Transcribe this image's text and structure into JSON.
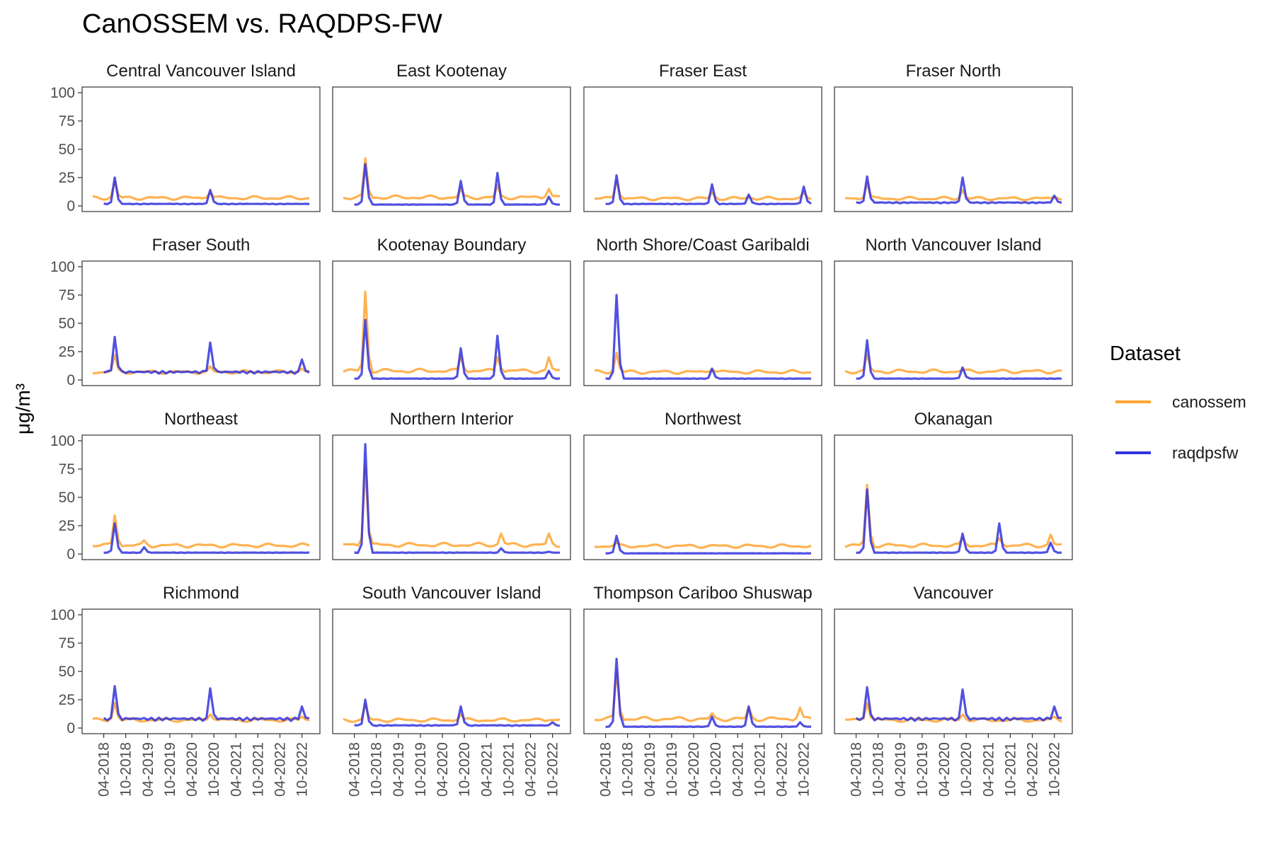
{
  "chart_data": {
    "type": "line",
    "title": "CanOSSEM vs. RAQDPS-FW",
    "ylabel": "μg/m³",
    "xlabel": "",
    "ylim": [
      0,
      100
    ],
    "yticks": [
      0,
      25,
      50,
      75,
      100
    ],
    "x_range": [
      "2018-01",
      "2022-12"
    ],
    "xticks": [
      "04-2018",
      "10-2018",
      "04-2019",
      "10-2019",
      "04-2020",
      "10-2020",
      "04-2021",
      "10-2021",
      "04-2022",
      "10-2022"
    ],
    "grid": false,
    "legend": {
      "title": "Dataset",
      "position": "right",
      "entries": [
        {
          "label": "canossem",
          "color": "#ffa533"
        },
        {
          "label": "raqdpsfw",
          "color": "#3333dd"
        }
      ]
    },
    "panels": [
      {
        "name": "Central Vancouver Island",
        "canossem_baseline": 7,
        "raqdpsfw_baseline": 1.5,
        "canossem_peaks": [
          [
            "2018-07",
            22
          ],
          [
            "2020-09",
            12
          ]
        ],
        "raqdpsfw_peaks": [
          [
            "2018-07",
            25
          ],
          [
            "2020-09",
            14
          ]
        ]
      },
      {
        "name": "East Kootenay",
        "canossem_baseline": 7.5,
        "raqdpsfw_baseline": 1,
        "canossem_peaks": [
          [
            "2018-07",
            42
          ],
          [
            "2020-09",
            15
          ],
          [
            "2021-07",
            18
          ],
          [
            "2022-09",
            15
          ]
        ],
        "raqdpsfw_peaks": [
          [
            "2018-07",
            37
          ],
          [
            "2020-09",
            22
          ],
          [
            "2021-07",
            29
          ],
          [
            "2022-09",
            8
          ]
        ]
      },
      {
        "name": "Fraser East",
        "canossem_baseline": 6.5,
        "raqdpsfw_baseline": 1.5,
        "canossem_peaks": [
          [
            "2018-07",
            22
          ],
          [
            "2020-09",
            12
          ],
          [
            "2021-07",
            8
          ],
          [
            "2022-10",
            12
          ]
        ],
        "raqdpsfw_peaks": [
          [
            "2018-07",
            27
          ],
          [
            "2020-09",
            19
          ],
          [
            "2021-07",
            10
          ],
          [
            "2022-10",
            17
          ]
        ]
      },
      {
        "name": "Fraser North",
        "canossem_baseline": 6.5,
        "raqdpsfw_baseline": 2.5,
        "canossem_peaks": [
          [
            "2018-07",
            20
          ],
          [
            "2020-09",
            14
          ],
          [
            "2022-10",
            8
          ]
        ],
        "raqdpsfw_peaks": [
          [
            "2018-07",
            26
          ],
          [
            "2020-09",
            25
          ],
          [
            "2022-10",
            9
          ]
        ]
      },
      {
        "name": "Fraser South",
        "canossem_baseline": 7,
        "raqdpsfw_baseline": 6,
        "canossem_peaks": [
          [
            "2018-07",
            22
          ],
          [
            "2020-09",
            12
          ],
          [
            "2022-10",
            10
          ]
        ],
        "raqdpsfw_peaks": [
          [
            "2018-07",
            38
          ],
          [
            "2020-09",
            33
          ],
          [
            "2022-10",
            18
          ]
        ]
      },
      {
        "name": "Kootenay Boundary",
        "canossem_baseline": 8,
        "raqdpsfw_baseline": 1,
        "canossem_peaks": [
          [
            "2018-07",
            78
          ],
          [
            "2020-09",
            20
          ],
          [
            "2021-07",
            20
          ],
          [
            "2022-09",
            20
          ]
        ],
        "raqdpsfw_peaks": [
          [
            "2018-07",
            53
          ],
          [
            "2020-09",
            28
          ],
          [
            "2021-07",
            39
          ],
          [
            "2022-09",
            8
          ]
        ]
      },
      {
        "name": "North Shore/Coast Garibaldi",
        "canossem_baseline": 7,
        "raqdpsfw_baseline": 1,
        "canossem_peaks": [
          [
            "2018-07",
            24
          ],
          [
            "2020-09",
            9
          ]
        ],
        "raqdpsfw_peaks": [
          [
            "2018-07",
            75
          ],
          [
            "2020-09",
            10
          ]
        ]
      },
      {
        "name": "North Vancouver Island",
        "canossem_baseline": 7.5,
        "raqdpsfw_baseline": 1,
        "canossem_peaks": [
          [
            "2018-07",
            23
          ],
          [
            "2020-09",
            9
          ]
        ],
        "raqdpsfw_peaks": [
          [
            "2018-07",
            35
          ],
          [
            "2020-09",
            11
          ]
        ]
      },
      {
        "name": "Northeast",
        "canossem_baseline": 7.5,
        "raqdpsfw_baseline": 1,
        "canossem_peaks": [
          [
            "2018-07",
            34
          ],
          [
            "2019-03",
            12
          ]
        ],
        "raqdpsfw_peaks": [
          [
            "2018-07",
            27
          ],
          [
            "2019-03",
            6
          ]
        ]
      },
      {
        "name": "Northern Interior",
        "canossem_baseline": 8,
        "raqdpsfw_baseline": 1,
        "canossem_peaks": [
          [
            "2018-07",
            77
          ],
          [
            "2021-08",
            18
          ],
          [
            "2022-09",
            18
          ]
        ],
        "raqdpsfw_peaks": [
          [
            "2018-07",
            97
          ],
          [
            "2021-08",
            5
          ],
          [
            "2022-09",
            2
          ]
        ]
      },
      {
        "name": "Northwest",
        "canossem_baseline": 7,
        "raqdpsfw_baseline": 0.5,
        "canossem_peaks": [
          [
            "2018-07",
            10
          ]
        ],
        "raqdpsfw_peaks": [
          [
            "2018-07",
            16
          ]
        ]
      },
      {
        "name": "Okanagan",
        "canossem_baseline": 7.5,
        "raqdpsfw_baseline": 1,
        "canossem_peaks": [
          [
            "2018-07",
            61
          ],
          [
            "2020-09",
            14
          ],
          [
            "2021-07",
            14
          ],
          [
            "2022-09",
            17
          ]
        ],
        "raqdpsfw_peaks": [
          [
            "2018-07",
            57
          ],
          [
            "2020-09",
            18
          ],
          [
            "2021-07",
            27
          ],
          [
            "2022-09",
            10
          ]
        ]
      },
      {
        "name": "Richmond",
        "canossem_baseline": 7,
        "raqdpsfw_baseline": 7,
        "canossem_peaks": [
          [
            "2018-07",
            22
          ],
          [
            "2020-09",
            12
          ],
          [
            "2022-10",
            10
          ]
        ],
        "raqdpsfw_peaks": [
          [
            "2018-07",
            37
          ],
          [
            "2020-09",
            35
          ],
          [
            "2022-10",
            19
          ]
        ]
      },
      {
        "name": "South Vancouver Island",
        "canossem_baseline": 7,
        "raqdpsfw_baseline": 2,
        "canossem_peaks": [
          [
            "2018-07",
            21
          ],
          [
            "2020-09",
            12
          ],
          [
            "2022-10",
            7
          ]
        ],
        "raqdpsfw_peaks": [
          [
            "2018-07",
            25
          ],
          [
            "2020-09",
            19
          ],
          [
            "2022-10",
            5
          ]
        ]
      },
      {
        "name": "Thompson Cariboo Shuswap",
        "canossem_baseline": 8,
        "raqdpsfw_baseline": 1,
        "canossem_peaks": [
          [
            "2018-07",
            50
          ],
          [
            "2020-09",
            13
          ],
          [
            "2021-07",
            18
          ],
          [
            "2022-09",
            18
          ]
        ],
        "raqdpsfw_peaks": [
          [
            "2018-07",
            61
          ],
          [
            "2020-09",
            10
          ],
          [
            "2021-07",
            19
          ],
          [
            "2022-09",
            5
          ]
        ]
      },
      {
        "name": "Vancouver",
        "canossem_baseline": 7,
        "raqdpsfw_baseline": 7,
        "canossem_peaks": [
          [
            "2018-07",
            22
          ],
          [
            "2020-09",
            12
          ],
          [
            "2022-10",
            10
          ]
        ],
        "raqdpsfw_peaks": [
          [
            "2018-07",
            36
          ],
          [
            "2020-09",
            34
          ],
          [
            "2022-10",
            19
          ]
        ]
      }
    ]
  }
}
